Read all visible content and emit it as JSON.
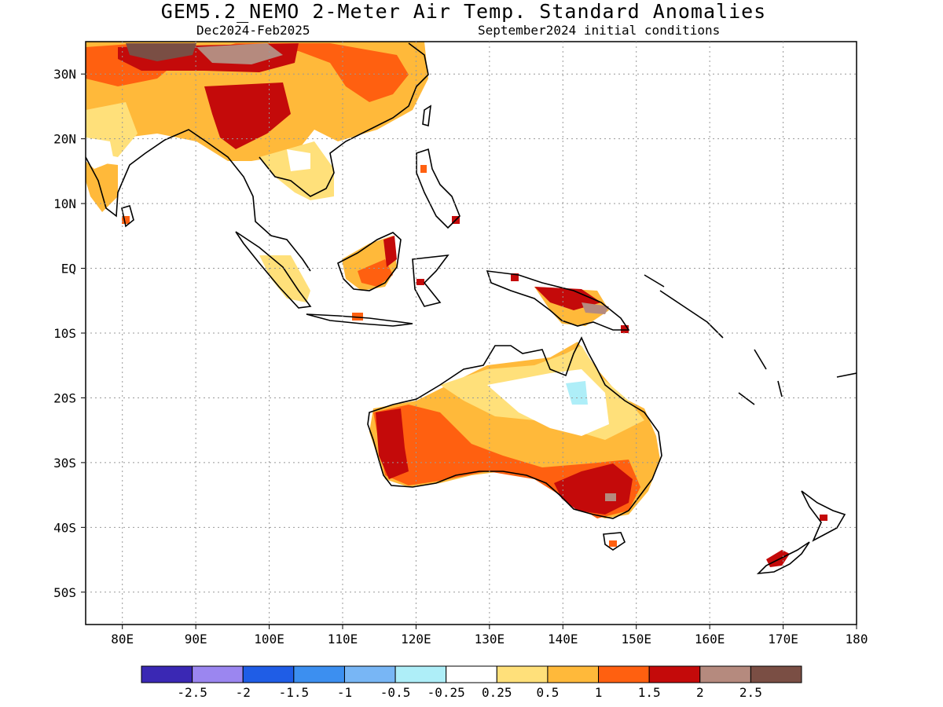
{
  "title": "GEM5.2_NEMO 2-Meter Air Temp. Standard Anomalies",
  "subtitle_left": "Dec2024-Feb2025",
  "subtitle_right": "September2024 initial conditions",
  "map": {
    "lon_range": [
      75,
      180
    ],
    "lat_range": [
      -55,
      35
    ],
    "lat_ticks": [
      {
        "value": 30,
        "label": "30N"
      },
      {
        "value": 20,
        "label": "20N"
      },
      {
        "value": 10,
        "label": "10N"
      },
      {
        "value": 0,
        "label": "EQ"
      },
      {
        "value": -10,
        "label": "10S"
      },
      {
        "value": -20,
        "label": "20S"
      },
      {
        "value": -30,
        "label": "30S"
      },
      {
        "value": -40,
        "label": "40S"
      },
      {
        "value": -50,
        "label": "50S"
      }
    ],
    "lon_ticks": [
      {
        "value": 80,
        "label": "80E"
      },
      {
        "value": 90,
        "label": "90E"
      },
      {
        "value": 100,
        "label": "100E"
      },
      {
        "value": 110,
        "label": "110E"
      },
      {
        "value": 120,
        "label": "120E"
      },
      {
        "value": 130,
        "label": "130E"
      },
      {
        "value": 140,
        "label": "140E"
      },
      {
        "value": 150,
        "label": "150E"
      },
      {
        "value": 160,
        "label": "160E"
      },
      {
        "value": 170,
        "label": "170E"
      },
      {
        "value": 180,
        "label": "180"
      }
    ],
    "grid": true
  },
  "colorbar": {
    "colors": [
      "#3a28b4",
      "#9b86f0",
      "#1f5de6",
      "#3c8ff0",
      "#78b6f5",
      "#aeeef8",
      "#ffffff",
      "#ffe07a",
      "#ffb93a",
      "#ff6010",
      "#c40a0a",
      "#b58a7e",
      "#7a4e44"
    ],
    "labels": [
      "-2.5",
      "-2",
      "-1.5",
      "-1",
      "-0.5",
      "-0.25",
      "0.25",
      "0.5",
      "1",
      "1.5",
      "2",
      "2.5"
    ]
  }
}
